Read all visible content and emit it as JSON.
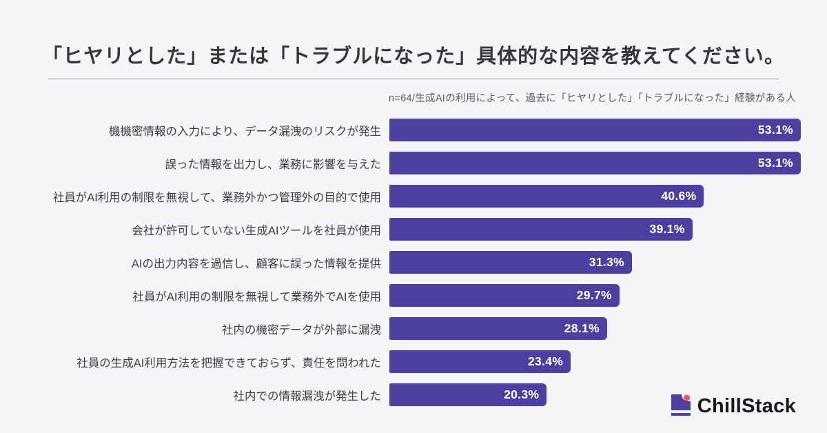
{
  "page": {
    "background": "#f5f4f7"
  },
  "header": {
    "title": "「ヒヤリとした」または「トラブルになった」具体的な内容を教えてください。",
    "note": "n=64/生成AIの利用によって、過去に「ヒヤリとした」「トラブルになった」経験がある人"
  },
  "chart_data": {
    "type": "bar",
    "orientation": "horizontal",
    "title": "「ヒヤリとした」または「トラブルになった」具体的な内容を教えてください。",
    "subtitle": "n=64/生成AIの利用によって、過去に「ヒヤリとした」「トラブルになった」経験がある人",
    "categories": [
      "機機密情報の入力により、データ漏洩のリスクが発生",
      "誤った情報を出力し、業務に影響を与えた",
      "社員がAI利用の制限を無視して、業務外かつ管理外の目的で使用",
      "会社が許可していない生成AIツールを社員が使用",
      "AIの出力内容を過信し、顧客に誤った情報を提供",
      "社員がAI利用の制限を無視して業務外でAIを使用",
      "社内の機密データが外部に漏洩",
      "社員の生成AI利用方法を把握できておらず、責任を問われた",
      "社内での情報漏洩が発生した"
    ],
    "values": [
      53.1,
      53.1,
      40.6,
      39.1,
      31.3,
      29.7,
      28.1,
      23.4,
      20.3
    ],
    "value_suffix": "%",
    "xlim": [
      0,
      53.1
    ],
    "grid": false,
    "legend": false,
    "bar_color": "#4b409e",
    "value_label_color": "#ffffff",
    "value_labels_inside": true
  },
  "footer": {
    "brand": "ChillStack",
    "brand_colors": {
      "icon_purple": "#4b409e",
      "icon_pink": "#e8566b",
      "text": "#17171e"
    }
  }
}
